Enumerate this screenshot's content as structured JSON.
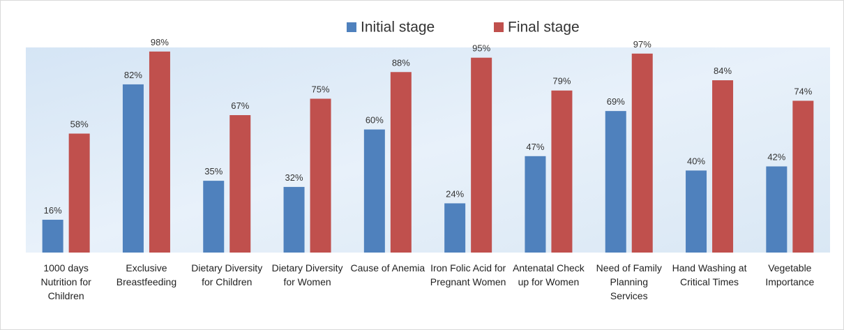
{
  "chart_data": {
    "type": "bar",
    "categories": [
      "1000 days Nutrition for Children",
      "Exclusive Breastfeeding",
      "Dietary Diversity for Children",
      "Dietary Diversity for Women",
      "Cause of Anemia",
      "Iron Folic Acid for Pregnant Women",
      "Antenatal Check up for Women",
      "Need of Family Planning Services",
      "Hand Washing at Critical Times",
      "Vegetable Importance"
    ],
    "series": [
      {
        "name": "Initial stage",
        "color": "#4f81bd",
        "values": [
          16,
          82,
          35,
          32,
          60,
          24,
          47,
          69,
          40,
          42
        ],
        "value_labels": [
          "16%",
          "82%",
          "35%",
          "32%",
          "60%",
          "24%",
          "47%",
          "69%",
          "40%",
          "42%"
        ]
      },
      {
        "name": "Final stage",
        "color": "#c0504d",
        "values": [
          58,
          98,
          67,
          75,
          88,
          95,
          79,
          97,
          84,
          74
        ],
        "value_labels": [
          "58%",
          "98%",
          "67%",
          "75%",
          "88%",
          "95%",
          "79%",
          "97%",
          "84%",
          "74%"
        ]
      }
    ],
    "ylim": [
      0,
      100
    ],
    "legend": "top"
  }
}
